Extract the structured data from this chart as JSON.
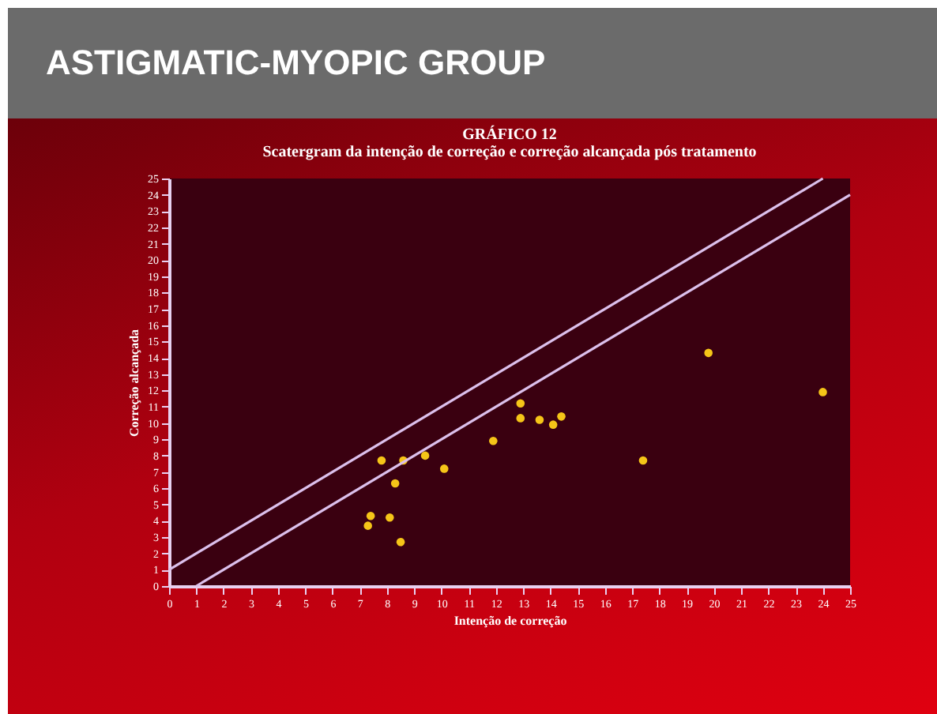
{
  "chart_data": {
    "type": "scatter",
    "title": "ASTIGMATIC-MYOPIC GROUP",
    "subtitle": "GRÁFICO 12",
    "annotations": [
      "Scatergram da intenção de correção e correção alcançada pós tratamento"
    ],
    "xlabel": "Intenção de correção",
    "ylabel": "Correção alcançada",
    "xlim": [
      0,
      25
    ],
    "ylim": [
      0,
      25
    ],
    "xticks": [
      0,
      1,
      2,
      3,
      4,
      5,
      6,
      7,
      8,
      9,
      10,
      11,
      12,
      13,
      14,
      15,
      16,
      17,
      18,
      19,
      20,
      21,
      22,
      23,
      24,
      25
    ],
    "yticks": [
      0,
      1,
      2,
      3,
      4,
      5,
      6,
      7,
      8,
      9,
      10,
      11,
      12,
      13,
      14,
      15,
      16,
      17,
      18,
      19,
      20,
      21,
      22,
      23,
      24,
      25
    ],
    "grid": false,
    "marker": "circle",
    "series": [
      {
        "color": "#f5c518",
        "x": [
          7.8,
          8.6,
          9.4,
          10.1,
          8.3,
          7.4,
          8.1,
          7.3,
          8.5,
          11.9,
          12.9,
          12.9,
          13.6,
          14.1,
          14.4,
          17.4,
          19.8,
          24.0
        ],
        "values": [
          7.7,
          7.7,
          8.0,
          7.2,
          6.3,
          4.3,
          4.2,
          3.7,
          2.7,
          8.9,
          11.2,
          10.3,
          10.2,
          9.9,
          10.4,
          7.7,
          14.3,
          11.9
        ]
      },
      {
        "type": "line",
        "color": "#dcc0ec",
        "line_style": "solid",
        "marker": "none",
        "x": [
          0,
          24
        ],
        "values": [
          1,
          25
        ]
      },
      {
        "type": "line",
        "color": "#dcc0ec",
        "line_style": "solid",
        "marker": "none",
        "x": [
          1,
          25
        ],
        "values": [
          0,
          24
        ]
      }
    ]
  }
}
